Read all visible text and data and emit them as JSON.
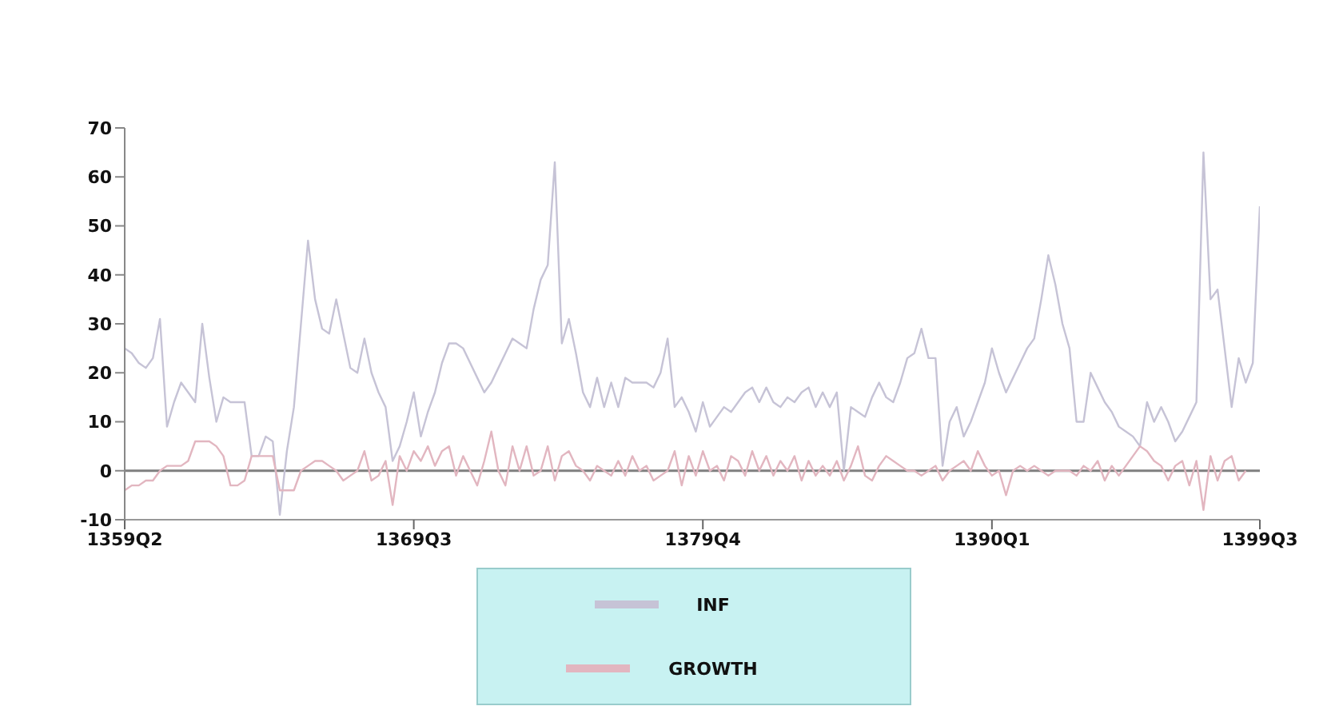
{
  "chart_data": {
    "type": "line",
    "categories": [
      "1359Q2",
      null,
      null,
      null,
      null,
      null,
      null,
      null,
      null,
      null,
      null,
      null,
      null,
      null,
      null,
      null,
      null,
      null,
      null,
      null,
      null,
      null,
      null,
      null,
      null,
      null,
      null,
      null,
      null,
      null,
      null,
      null,
      null,
      null,
      null,
      null,
      null,
      null,
      null,
      null,
      null,
      "1369Q3",
      null,
      null,
      null,
      null,
      null,
      null,
      null,
      null,
      null,
      null,
      null,
      null,
      null,
      null,
      null,
      null,
      null,
      null,
      null,
      null,
      null,
      null,
      null,
      null,
      null,
      null,
      null,
      null,
      null,
      null,
      null,
      null,
      null,
      null,
      null,
      null,
      null,
      null,
      null,
      null,
      "1379Q4",
      null,
      null,
      null,
      null,
      null,
      null,
      null,
      null,
      null,
      null,
      null,
      null,
      null,
      null,
      null,
      null,
      null,
      null,
      null,
      null,
      null,
      null,
      null,
      null,
      null,
      null,
      null,
      null,
      null,
      null,
      null,
      null,
      null,
      null,
      null,
      null,
      null,
      null,
      null,
      null,
      "1390Q1",
      null,
      null,
      null,
      null,
      null,
      null,
      null,
      null,
      null,
      null,
      null,
      null,
      null,
      null,
      null,
      null,
      null,
      null,
      null,
      null,
      null,
      null,
      null,
      null,
      null,
      null,
      null,
      null,
      null,
      null,
      null,
      null,
      null,
      null,
      null,
      null,
      null,
      "1399Q3"
    ],
    "series": [
      {
        "name": "INF",
        "color": "#c6c3d6",
        "values": [
          25,
          24,
          22,
          21,
          23,
          31,
          9,
          14,
          18,
          16,
          14,
          30,
          19,
          10,
          15,
          14,
          14,
          14,
          3,
          3,
          7,
          6,
          -9,
          4,
          13,
          30,
          47,
          35,
          29,
          28,
          35,
          28,
          21,
          20,
          27,
          20,
          16,
          13,
          2,
          5,
          10,
          16,
          7,
          12,
          16,
          22,
          26,
          26,
          25,
          22,
          19,
          16,
          18,
          21,
          24,
          27,
          26,
          25,
          33,
          39,
          42,
          63,
          26,
          31,
          24,
          16,
          13,
          19,
          13,
          18,
          13,
          19,
          18,
          18,
          18,
          17,
          20,
          27,
          13,
          15,
          12,
          8,
          14,
          9,
          11,
          13,
          12,
          14,
          16,
          17,
          14,
          17,
          14,
          13,
          15,
          14,
          16,
          17,
          13,
          16,
          13,
          16,
          0,
          13,
          12,
          11,
          15,
          18,
          15,
          14,
          18,
          23,
          24,
          29,
          23,
          23,
          1,
          10,
          13,
          7,
          10,
          14,
          18,
          25,
          20,
          16,
          19,
          22,
          25,
          27,
          35,
          44,
          38,
          30,
          25,
          10,
          10,
          20,
          17,
          14,
          12,
          9,
          8,
          7,
          5,
          14,
          10,
          13,
          10,
          6,
          8,
          11,
          14,
          65,
          35,
          37,
          25,
          13,
          23,
          18,
          22,
          54
        ]
      },
      {
        "name": "GROWTH",
        "color": "#e2b6c0",
        "values": [
          -4,
          -3,
          -3,
          -2,
          -2,
          0,
          1,
          1,
          1,
          2,
          6,
          6,
          6,
          5,
          3,
          -3,
          -3,
          -2,
          3,
          3,
          3,
          3,
          -4,
          -4,
          -4,
          0,
          1,
          2,
          2,
          1,
          0,
          -2,
          -1,
          0,
          4,
          -2,
          -1,
          2,
          -7,
          3,
          0,
          4,
          2,
          5,
          1,
          4,
          5,
          -1,
          3,
          0,
          -3,
          2,
          8,
          0,
          -3,
          5,
          0,
          5,
          -1,
          0,
          5,
          -2,
          3,
          4,
          1,
          0,
          -2,
          1,
          0,
          -1,
          2,
          -1,
          3,
          0,
          1,
          -2,
          -1,
          0,
          4,
          -3,
          3,
          -1,
          4,
          0,
          1,
          -2,
          3,
          2,
          -1,
          4,
          0,
          3,
          -1,
          2,
          0,
          3,
          -2,
          2,
          -1,
          1,
          -1,
          2,
          -2,
          1,
          5,
          -1,
          -2,
          1,
          3,
          2,
          1,
          0,
          0,
          -1,
          0,
          1,
          -2,
          0,
          1,
          2,
          0,
          4,
          1,
          -1,
          0,
          -5,
          0,
          1,
          0,
          1,
          0,
          -1,
          0,
          0,
          0,
          -1,
          1,
          0,
          2,
          -2,
          1,
          -1,
          1,
          3,
          5,
          4,
          2,
          1,
          -2,
          1,
          2,
          -3,
          2,
          -8,
          3,
          -2,
          2,
          3,
          -2,
          0,
          null,
          null
        ]
      }
    ],
    "ylim": [
      -10,
      70
    ],
    "yticks": [
      -10,
      0,
      10,
      20,
      30,
      40,
      50,
      60,
      70
    ],
    "ref_lines": [
      {
        "axis": "y",
        "value": 0,
        "color": "#7f7f7f"
      }
    ],
    "grid": false,
    "legend": "bottom",
    "marker": "none",
    "line_style": "solid"
  }
}
